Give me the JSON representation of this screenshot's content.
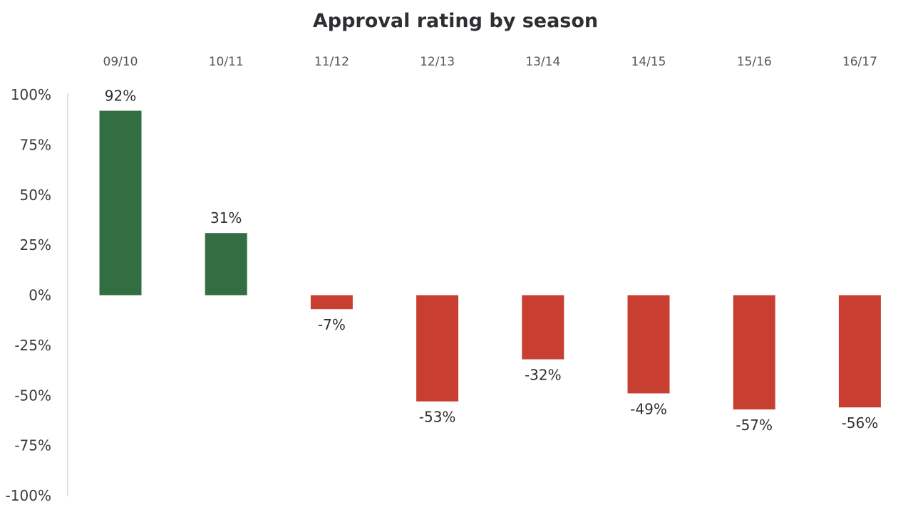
{
  "chart_data": {
    "type": "bar",
    "title": "Approval rating by season",
    "categories": [
      "09/10",
      "10/11",
      "11/12",
      "12/13",
      "13/14",
      "14/15",
      "15/16",
      "16/17"
    ],
    "values": [
      92,
      31,
      -7,
      -53,
      -32,
      -49,
      -57,
      -56
    ],
    "value_labels": [
      "92%",
      "31%",
      "-7%",
      "-53%",
      "-32%",
      "-49%",
      "-57%",
      "-56%"
    ],
    "xlabel": "",
    "ylabel": "",
    "ylim": [
      -100,
      100
    ],
    "yticks": [
      100,
      75,
      50,
      25,
      0,
      -25,
      -50,
      -75,
      -100
    ],
    "ytick_labels": [
      "100%",
      "75%",
      "50%",
      "25%",
      "0%",
      "-25%",
      "-50%",
      "-75%",
      "-100%"
    ],
    "category_axis_position": "top",
    "grid": false,
    "legend": null,
    "colors": {
      "positive": "#336e43",
      "negative": "#c83f32",
      "axis": "#c8c8c8",
      "text": "#2f2f33"
    }
  }
}
